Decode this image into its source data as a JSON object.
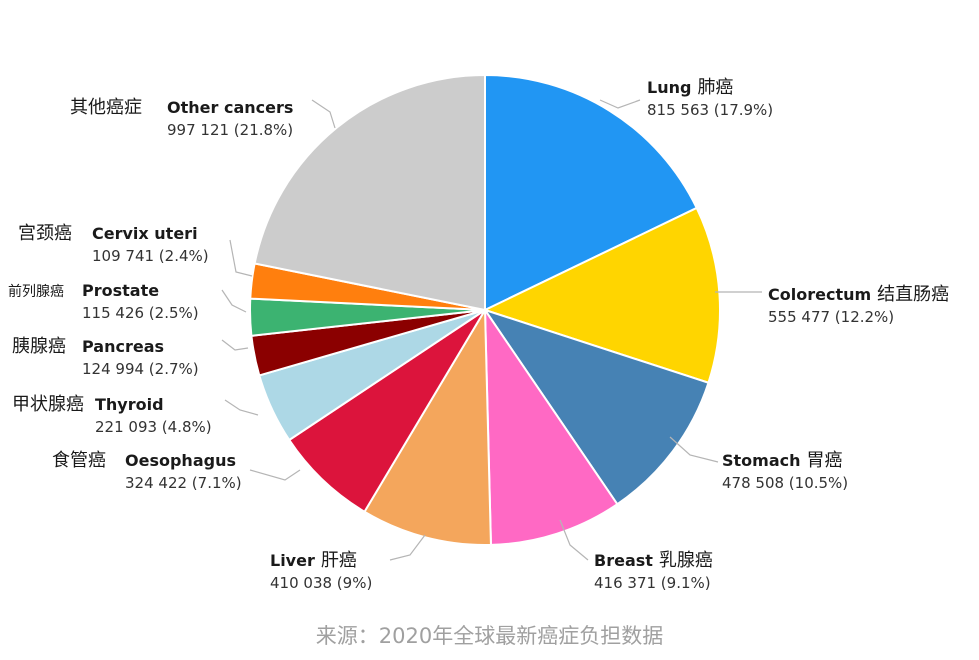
{
  "chart_data": {
    "type": "pie",
    "unit_note": "",
    "slices": [
      {
        "name": "Lung",
        "name_cn": "肺癌",
        "value": 815563,
        "value_label": "815 563 (17.9%)",
        "percent": 17.9,
        "color": "#2196F3"
      },
      {
        "name": "Colorectum",
        "name_cn": "结直肠癌",
        "value": 555477,
        "value_label": "555 477 (12.2%)",
        "percent": 12.2,
        "color": "#FFD500"
      },
      {
        "name": "Stomach",
        "name_cn": "胃癌",
        "value": 478508,
        "value_label": "478 508 (10.5%)",
        "percent": 10.5,
        "color": "#4682B4"
      },
      {
        "name": "Breast",
        "name_cn": "乳腺癌",
        "value": 416371,
        "value_label": "416 371 (9.1%)",
        "percent": 9.1,
        "color": "#FF69C4"
      },
      {
        "name": "Liver",
        "name_cn": "肝癌",
        "value": 410038,
        "value_label": "410 038 (9%)",
        "percent": 9.0,
        "color": "#F4A65C"
      },
      {
        "name": "Oesophagus",
        "name_cn": "食管癌",
        "value": 324422,
        "value_label": "324 422 (7.1%)",
        "percent": 7.1,
        "color": "#DC143C"
      },
      {
        "name": "Thyroid",
        "name_cn": "甲状腺癌",
        "value": 221093,
        "value_label": "221 093 (4.8%)",
        "percent": 4.8,
        "color": "#ADD8E6"
      },
      {
        "name": "Pancreas",
        "name_cn": "胰腺癌",
        "value": 124994,
        "value_label": "124 994 (2.7%)",
        "percent": 2.7,
        "color": "#8B0000"
      },
      {
        "name": "Prostate",
        "name_cn": "前列腺癌",
        "value": 115426,
        "value_label": "115 426 (2.5%)",
        "percent": 2.5,
        "color": "#3CB371"
      },
      {
        "name": "Cervix uteri",
        "name_cn": "宫颈癌",
        "value": 109741,
        "value_label": "109 741 (2.4%)",
        "percent": 2.4,
        "color": "#FF7F0E"
      },
      {
        "name": "Other cancers",
        "name_cn": "其他癌症",
        "value": 997121,
        "value_label": "997 121 (21.8%)",
        "percent": 21.8,
        "color": "#CCCCCC"
      }
    ]
  },
  "source": "来源：2020年全球最新癌症负担数据"
}
